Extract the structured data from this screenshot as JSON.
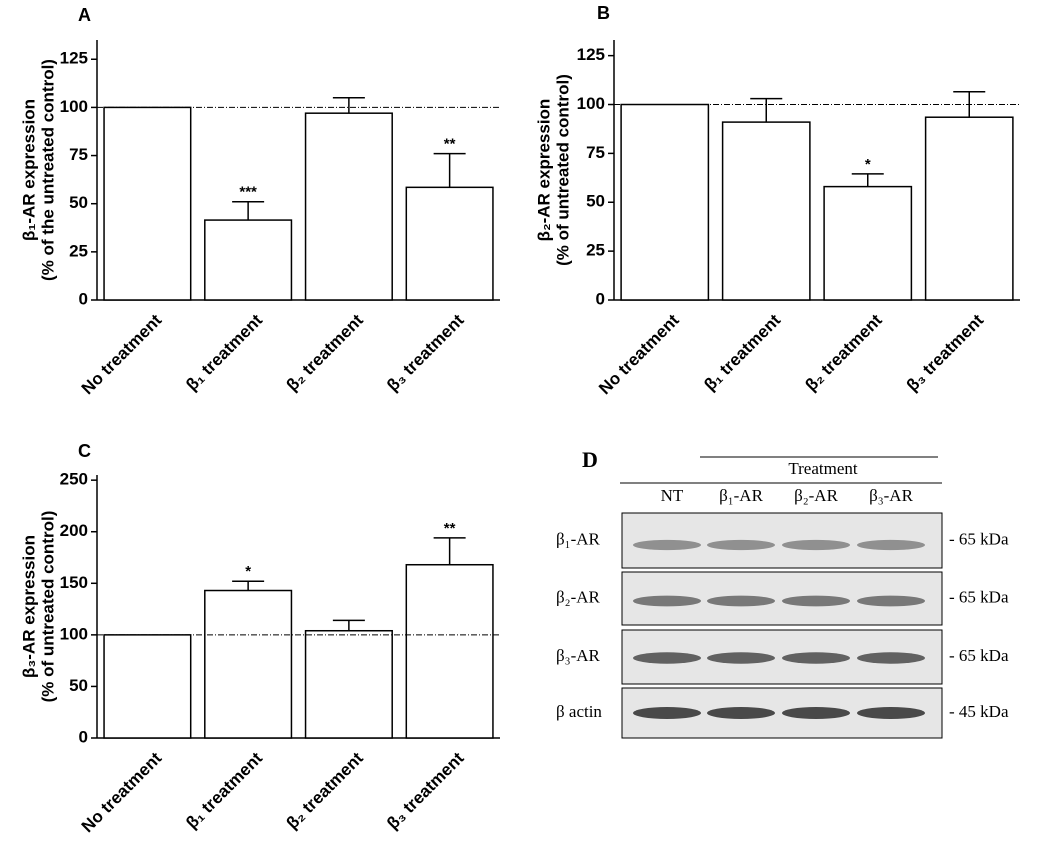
{
  "chart_data": [
    {
      "type": "bar",
      "panel": "A",
      "ylabel": [
        "β₁-AR expression",
        "(% of the untreated control)"
      ],
      "categories": [
        "No treatment",
        "β₁ treatment",
        "β₂ treatment",
        "β₃ treatment"
      ],
      "values": [
        100,
        41.5,
        97,
        58.5
      ],
      "errors": [
        null,
        9.5,
        8,
        17.5
      ],
      "annotations": [
        null,
        "***",
        null,
        "**"
      ],
      "reference_line": 100,
      "ylim": [
        0,
        135
      ],
      "yticks": [
        0,
        25,
        50,
        75,
        100,
        125
      ],
      "color": "#ffffff"
    },
    {
      "type": "bar",
      "panel": "B",
      "ylabel": [
        "β₂-AR expression",
        "(% of untreated control)"
      ],
      "categories": [
        "No treatment",
        "β₁ treatment",
        "β₂ treatment",
        "β₃ treatment"
      ],
      "values": [
        100,
        91,
        58,
        93.5
      ],
      "errors": [
        null,
        12,
        6.5,
        13
      ],
      "annotations": [
        null,
        null,
        "*",
        null
      ],
      "reference_line": 100,
      "ylim": [
        0,
        133
      ],
      "yticks": [
        0,
        25,
        50,
        75,
        100,
        125
      ],
      "color": "#ffffff"
    },
    {
      "type": "bar",
      "panel": "C",
      "ylabel": [
        "β₃-AR expression",
        "(% of untreated control)"
      ],
      "categories": [
        "No treatment",
        "β₁ treatment",
        "β₂ treatment",
        "β₃ treatment"
      ],
      "values": [
        100,
        143,
        104,
        168
      ],
      "errors": [
        null,
        9,
        10,
        26
      ],
      "annotations": [
        null,
        "*",
        null,
        "**"
      ],
      "reference_line": 100,
      "ylim": [
        0,
        255
      ],
      "yticks": [
        0,
        50,
        100,
        150,
        200,
        250
      ],
      "color": "#ffffff"
    }
  ],
  "blot": {
    "panel": "D",
    "header": "Treatment",
    "lanes": [
      "NT",
      "β₁-AR",
      "β₂-AR",
      "β₃-AR"
    ],
    "rows": [
      {
        "name": "β₁-AR",
        "size": "- 65  kDa"
      },
      {
        "name": "β₂-AR",
        "size": "- 65  kDa"
      },
      {
        "name": "β₃-AR",
        "size": "- 65 kDa"
      },
      {
        "name": "β  actin",
        "size": "- 45  kDa"
      }
    ]
  }
}
